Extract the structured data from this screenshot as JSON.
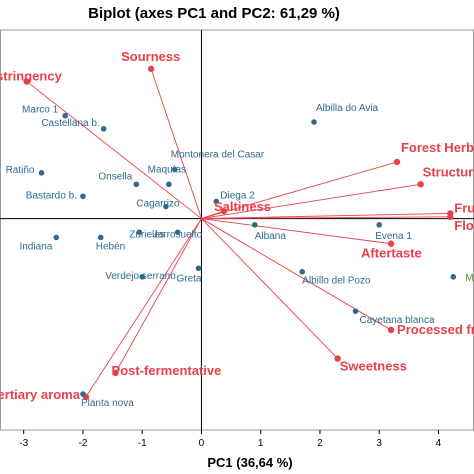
{
  "chart_data": {
    "type": "scatter",
    "title": "Biplot (axes PC1 and PC2: 61,29 %)",
    "xlabel": "PC1 (36,64 %)",
    "ylabel": "",
    "xlim": [
      -3.4,
      4.6
    ],
    "ylim": [
      -3.7,
      3.3
    ],
    "x_ticks": [
      "-3",
      "-2",
      "-1",
      "0",
      "1",
      "2",
      "3",
      "4"
    ],
    "x_tick_values": [
      -3,
      -2,
      -1,
      0,
      1,
      2,
      3,
      4
    ],
    "grid": false,
    "colors": {
      "variables": "#e8414a",
      "observations": "#2e6b8e",
      "supplementary": "#5a8f3a",
      "axes": "#000000",
      "frame": "#999999"
    },
    "variables": [
      {
        "name": "Sourness",
        "x": -0.85,
        "y": 2.62
      },
      {
        "name": "Astringency",
        "x": -2.95,
        "y": 2.4
      },
      {
        "name": "Forest Herbs",
        "x": 3.3,
        "y": 0.99
      },
      {
        "name": "Structure",
        "x": 3.7,
        "y": 0.6
      },
      {
        "name": "Fruity",
        "x": 4.2,
        "y": 0.09
      },
      {
        "name": "Floral",
        "x": 4.2,
        "y": 0.03
      },
      {
        "name": "Saltiness",
        "x": 0.38,
        "y": 0.13
      },
      {
        "name": "Aftertaste",
        "x": 3.2,
        "y": -0.44
      },
      {
        "name": "Processed fruit",
        "x": 3.2,
        "y": -1.95
      },
      {
        "name": "Sweetness",
        "x": 2.3,
        "y": -2.45
      },
      {
        "name": "Post-fermentative",
        "x": -1.45,
        "y": -2.7
      },
      {
        "name": "Tertiary aroma",
        "x": -1.95,
        "y": -3.12
      }
    ],
    "observations": [
      {
        "name": "Albilla do Avia",
        "x": 1.9,
        "y": 1.69
      },
      {
        "name": "Marco 1",
        "x": -2.3,
        "y": 1.8
      },
      {
        "name": "Castellana b.",
        "x": -1.65,
        "y": 1.57
      },
      {
        "name": "Montonera del Casar",
        "x": -0.45,
        "y": 0.86
      },
      {
        "name": "Ratiño",
        "x": -2.7,
        "y": 0.8
      },
      {
        "name": "Onsella",
        "x": -1.1,
        "y": 0.6
      },
      {
        "name": "Maquías",
        "x": -0.55,
        "y": 0.6
      },
      {
        "name": "Diega 2",
        "x": 0.25,
        "y": 0.3
      },
      {
        "name": "Bastardo b.",
        "x": -2.0,
        "y": 0.39
      },
      {
        "name": "Cagarrizo",
        "x": -0.6,
        "y": 0.21
      },
      {
        "name": "Indiana",
        "x": -2.45,
        "y": -0.33
      },
      {
        "name": "Hebén",
        "x": -1.7,
        "y": -0.33
      },
      {
        "name": "Zurieles",
        "x": -1.05,
        "y": -0.24
      },
      {
        "name": "Jarrosuelto",
        "x": -0.4,
        "y": -0.24
      },
      {
        "name": "Albana",
        "x": 0.9,
        "y": -0.11
      },
      {
        "name": "Evena 1",
        "x": 3.0,
        "y": -0.11
      },
      {
        "name": "Verdejo serrano",
        "x": -1.0,
        "y": -1.02
      },
      {
        "name": "Greta",
        "x": -0.05,
        "y": -0.87
      },
      {
        "name": "Albillo del Pozo",
        "x": 1.7,
        "y": -0.93
      },
      {
        "name": "Cayetana blanca",
        "x": 2.6,
        "y": -1.62
      },
      {
        "name": "Planta nova",
        "x": -2.0,
        "y": -3.07
      }
    ],
    "supplementary": [
      {
        "name": "Mo",
        "x": 4.25,
        "y": -1.02
      }
    ]
  }
}
